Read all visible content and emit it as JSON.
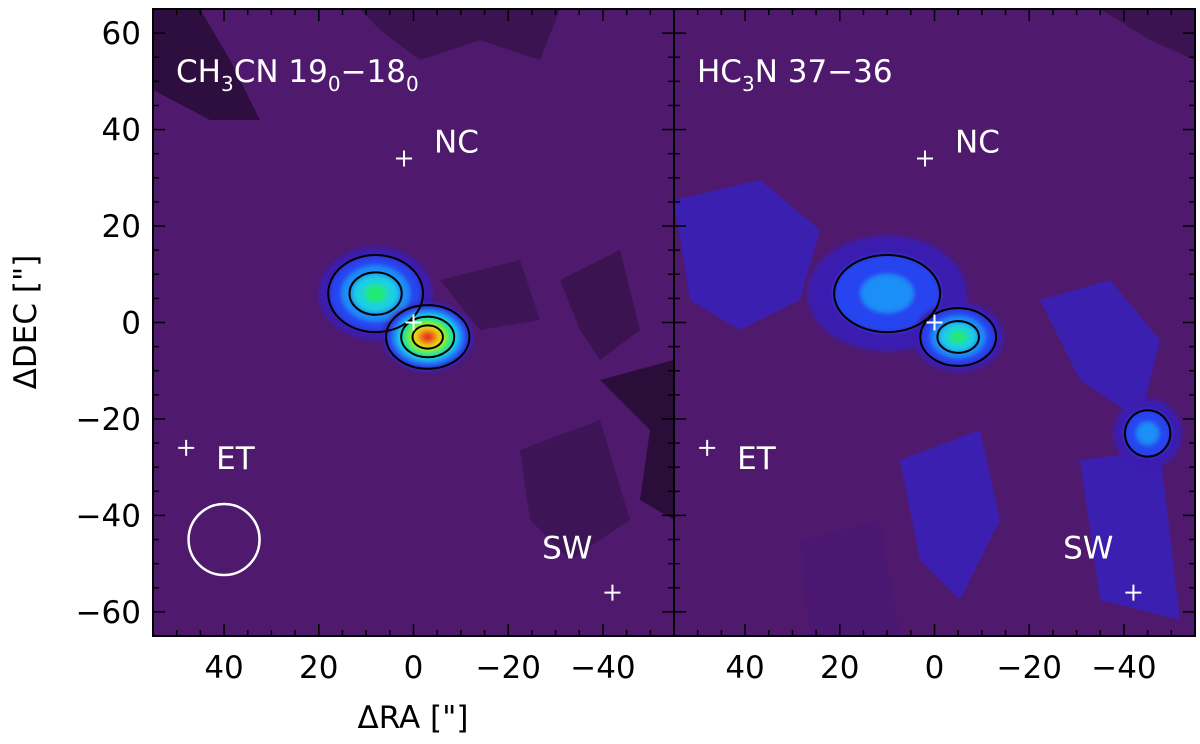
{
  "figure": {
    "shared_ylabel": "ΔDEC [\"]",
    "shared_xlabel": "ΔRA [\"]"
  },
  "chart_data": [
    {
      "type": "heatmap",
      "panel": "left",
      "title": "",
      "annotation": {
        "molecule": "CH3CN",
        "transition": "19_0-18_0",
        "prefix": "CH",
        "sub1": "3",
        "mid": "CN 19",
        "sub2": "0",
        "dash": "−18",
        "sub3": "0"
      },
      "xlabel": "ΔRA [\"]",
      "ylabel": "ΔDEC [\"]",
      "xlim": [
        55,
        -55
      ],
      "ylim": [
        -65,
        65
      ],
      "xticks": [
        40,
        20,
        0,
        -20,
        -40
      ],
      "xtick_labels": [
        "40",
        "20",
        "0",
        "−20",
        "−40"
      ],
      "yticks": [
        60,
        40,
        20,
        0,
        -20,
        -40,
        -60
      ],
      "ytick_labels": [
        "60",
        "40",
        "20",
        "0",
        "−20",
        "−40",
        "−60"
      ],
      "background_color": "#4f1a6e",
      "emission_peaks": [
        {
          "x": 8,
          "y": 6,
          "sx": 5,
          "sy": 4,
          "level": 0.55
        },
        {
          "x": -3,
          "y": -3,
          "sx": 4,
          "sy": 3,
          "level": 1.0
        }
      ],
      "colormap": [
        "#4f1a6e",
        "#3b1fb0",
        "#2544f0",
        "#1e8ef7",
        "#1ed0e0",
        "#23e878",
        "#7cf01c",
        "#f0d21a",
        "#f07a18",
        "#e02020"
      ],
      "markers": [
        {
          "label": "NC",
          "x": 2,
          "y": 34
        },
        {
          "label": "",
          "x": 0,
          "y": 0
        },
        {
          "label": "ET",
          "x": 48,
          "y": -26
        },
        {
          "label": "SW",
          "x": -42,
          "y": -56
        }
      ],
      "beam": {
        "x": 40,
        "y": -45,
        "diameter_arcsec": 15
      }
    },
    {
      "type": "heatmap",
      "panel": "right",
      "title": "",
      "annotation": {
        "molecule": "HC3N",
        "transition": "37-36",
        "prefix": "HC",
        "sub1": "3",
        "mid": "N 37−36"
      },
      "xlabel": "ΔRA [\"]",
      "ylabel": "",
      "xlim": [
        55,
        -55
      ],
      "ylim": [
        -65,
        65
      ],
      "xticks": [
        40,
        20,
        0,
        -20,
        -40
      ],
      "xtick_labels": [
        "40",
        "20",
        "0",
        "−20",
        "−40"
      ],
      "background_color": "#4f1a6e",
      "emission_peaks": [
        {
          "x": 10,
          "y": 6,
          "sx": 7,
          "sy": 5,
          "level": 0.35
        },
        {
          "x": -5,
          "y": -3,
          "sx": 4,
          "sy": 3,
          "level": 0.6
        },
        {
          "x": -45,
          "y": -23,
          "sx": 3,
          "sy": 3,
          "level": 0.28
        }
      ],
      "colormap": [
        "#4f1a6e",
        "#3b1fb0",
        "#2544f0",
        "#1e8ef7",
        "#1ed0e0",
        "#23e878",
        "#7cf01c",
        "#f0d21a",
        "#f07a18",
        "#e02020"
      ],
      "markers": [
        {
          "label": "NC",
          "x": 2,
          "y": 34
        },
        {
          "label": "",
          "x": 0,
          "y": 0
        },
        {
          "label": "ET",
          "x": 48,
          "y": -26
        },
        {
          "label": "SW",
          "x": -42,
          "y": -56
        }
      ]
    }
  ]
}
